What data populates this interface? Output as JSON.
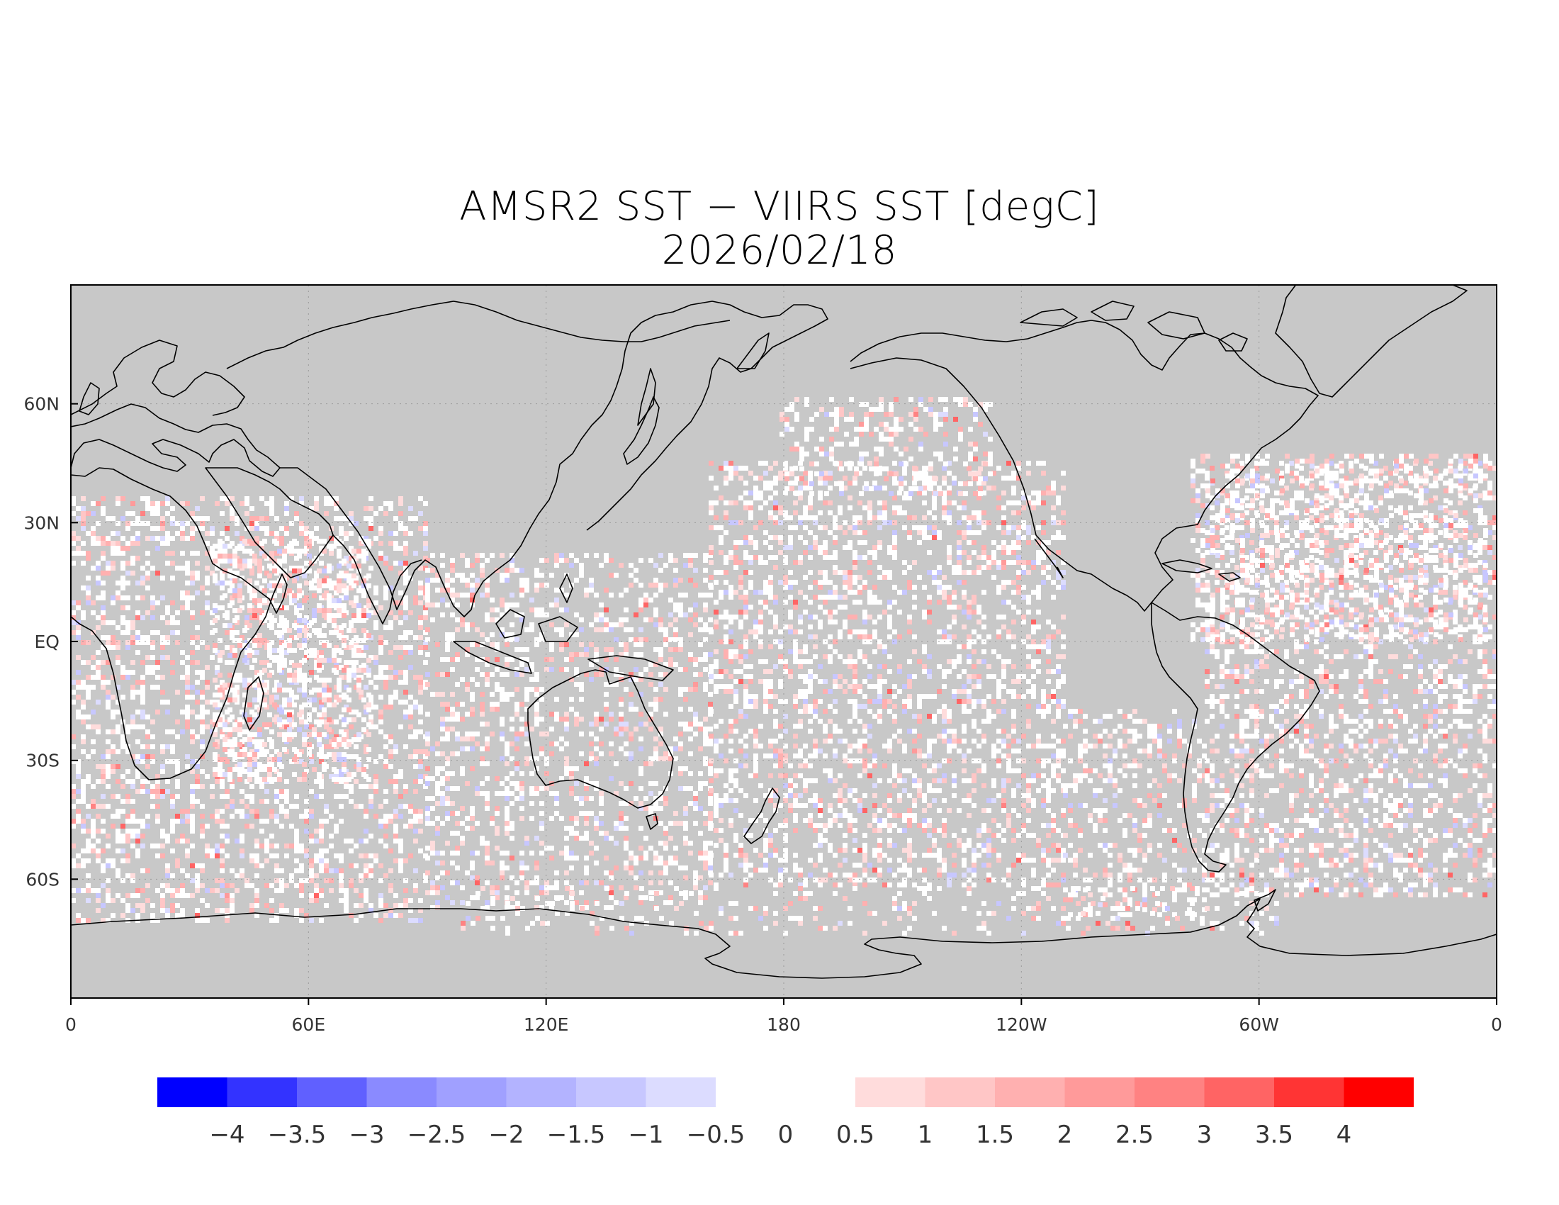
{
  "title": {
    "line1": "AMSR2 SST − VIIRS SST [degC]",
    "line2": "2026/02/18"
  },
  "map": {
    "background_color": "#c8c8c8",
    "lon_ticks": [
      {
        "lon": 0,
        "label": "0"
      },
      {
        "lon": 60,
        "label": "60E"
      },
      {
        "lon": 120,
        "label": "120E"
      },
      {
        "lon": 180,
        "label": "180"
      },
      {
        "lon": 240,
        "label": "120W"
      },
      {
        "lon": 300,
        "label": "60W"
      },
      {
        "lon": 360,
        "label": "0"
      }
    ],
    "lat_ticks": [
      {
        "lat": 60,
        "label": "60N"
      },
      {
        "lat": 30,
        "label": "30N"
      },
      {
        "lat": 0,
        "label": "EQ"
      },
      {
        "lat": -30,
        "label": "30S"
      },
      {
        "lat": -60,
        "label": "60S"
      }
    ],
    "lon_range": [
      0,
      360
    ],
    "lat_range": [
      -90,
      90
    ]
  },
  "colorbar": {
    "negative": {
      "colors": [
        "#0000ff",
        "#3333ff",
        "#6060ff",
        "#8a8aff",
        "#a0a0ff",
        "#b3b3ff",
        "#c7c7ff",
        "#dcdcff"
      ]
    },
    "positive": {
      "colors": [
        "#ffdcdc",
        "#ffc6c6",
        "#ffb0b0",
        "#ff9a9a",
        "#ff8282",
        "#ff6464",
        "#ff3434",
        "#ff0000"
      ]
    },
    "labels": [
      "−4",
      "−3.5",
      "−3",
      "−2.5",
      "−2",
      "−1.5",
      "−1",
      "−0.5",
      "0",
      "0.5",
      "1",
      "1.5",
      "2",
      "2.5",
      "3",
      "3.5",
      "4"
    ]
  }
}
